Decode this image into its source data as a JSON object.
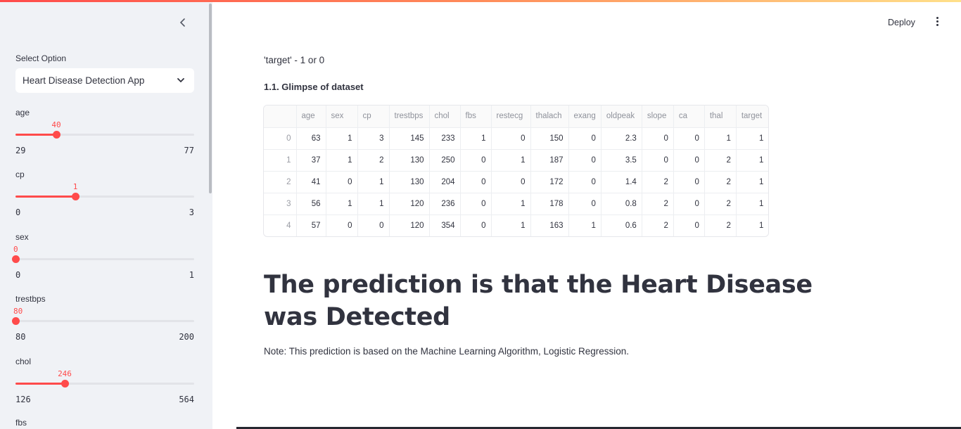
{
  "header": {
    "deploy_label": "Deploy",
    "menu_icon": "kebab-menu-icon"
  },
  "sidebar": {
    "collapse_icon": "chevron-left-icon",
    "select_label": "Select Option",
    "select_value": "Heart Disease Detection App",
    "sliders": [
      {
        "label": "age",
        "value": "40",
        "min": "29",
        "max": "77",
        "fraction": 0.229
      },
      {
        "label": "cp",
        "value": "1",
        "min": "0",
        "max": "3",
        "fraction": 0.333
      },
      {
        "label": "sex",
        "value": "0",
        "min": "0",
        "max": "1",
        "fraction": 0.0
      },
      {
        "label": "trestbps",
        "value": "80",
        "min": "80",
        "max": "200",
        "fraction": 0.0
      },
      {
        "label": "chol",
        "value": "246",
        "min": "126",
        "max": "564",
        "fraction": 0.274
      }
    ],
    "next_label": "fbs"
  },
  "main": {
    "target_text": "'target' - 1 or 0",
    "glimpse_title": "1.1. Glimpse of dataset",
    "table": {
      "columns": [
        "",
        "age",
        "sex",
        "cp",
        "trestbps",
        "chol",
        "fbs",
        "restecg",
        "thalach",
        "exang",
        "oldpeak",
        "slope",
        "ca",
        "thal",
        "target"
      ],
      "rows": [
        [
          "0",
          "63",
          "1",
          "3",
          "145",
          "233",
          "1",
          "0",
          "150",
          "0",
          "2.3",
          "0",
          "0",
          "1",
          "1"
        ],
        [
          "1",
          "37",
          "1",
          "2",
          "130",
          "250",
          "0",
          "1",
          "187",
          "0",
          "3.5",
          "0",
          "0",
          "2",
          "1"
        ],
        [
          "2",
          "41",
          "0",
          "1",
          "130",
          "204",
          "0",
          "0",
          "172",
          "0",
          "1.4",
          "2",
          "0",
          "2",
          "1"
        ],
        [
          "3",
          "56",
          "1",
          "1",
          "120",
          "236",
          "0",
          "1",
          "178",
          "0",
          "0.8",
          "2",
          "0",
          "2",
          "1"
        ],
        [
          "4",
          "57",
          "0",
          "0",
          "120",
          "354",
          "0",
          "1",
          "163",
          "1",
          "0.6",
          "2",
          "0",
          "2",
          "1"
        ]
      ]
    },
    "prediction": "The prediction is that the Heart Disease was Detected",
    "note": "Note: This prediction is based on the Machine Learning Algorithm, Logistic Regression."
  },
  "colors": {
    "accent": "#ff4b4b",
    "sidebar_bg": "#f0f2f6",
    "text": "#31333f"
  }
}
